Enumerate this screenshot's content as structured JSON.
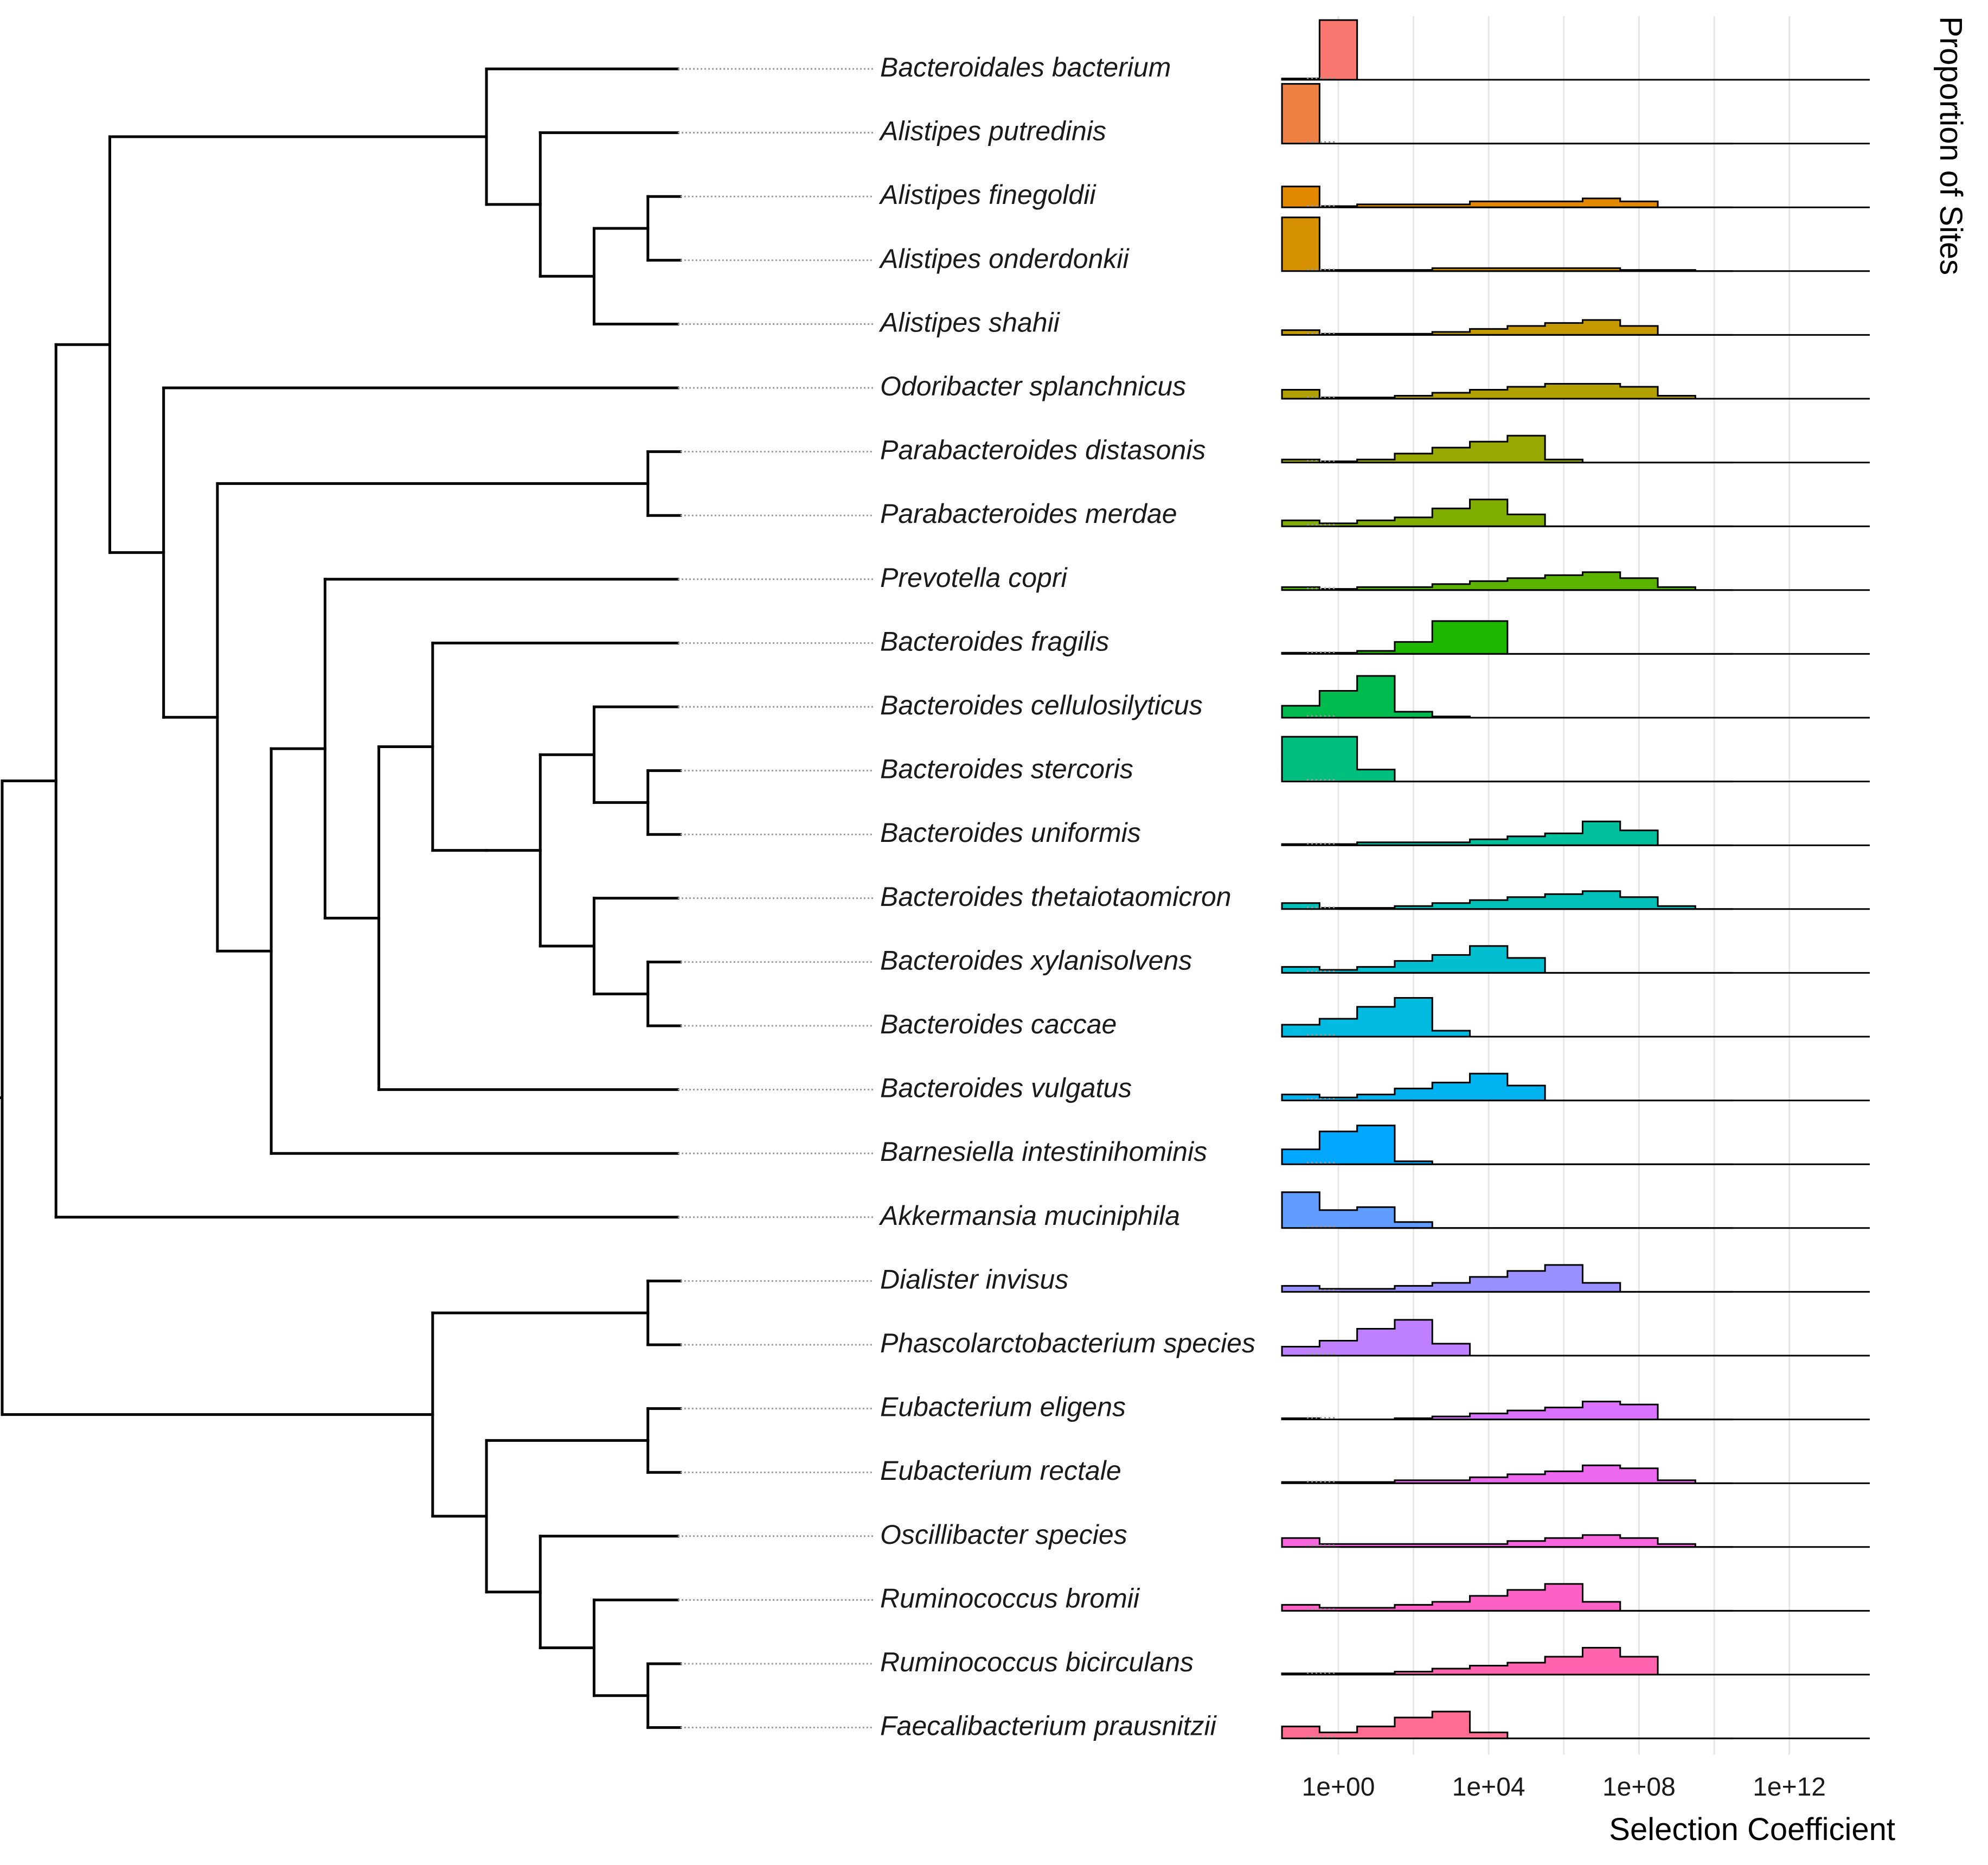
{
  "chart_data": {
    "type": "ridgeline histogram with phylogenetic tree",
    "xlabel": "Selection Coefficient",
    "ylabel": "Proportion of Sites",
    "x_scale": "log10",
    "x_ticks": [
      {
        "label": "1e+00",
        "value": 1
      },
      {
        "label": "1e+04",
        "value": 10000
      },
      {
        "label": "1e+08",
        "value": 100000000
      },
      {
        "label": "1e+12",
        "value": 1000000000000
      }
    ],
    "bin_edges_log10": [
      -1.5,
      -0.5,
      0.5,
      1.5,
      2.5,
      3.5,
      4.5,
      5.5,
      6.5,
      7.5,
      8.5,
      9.5,
      10.5
    ],
    "x_range_log10": [
      -2.5,
      11.5
    ],
    "series": [
      {
        "name": "Bacteroidales bacterium",
        "color": "#F8766D",
        "values": [
          0.02,
          1.0,
          0,
          0,
          0,
          0,
          0,
          0,
          0,
          0,
          0,
          0
        ]
      },
      {
        "name": "Alistipes putredinis",
        "color": "#EE8044",
        "values": [
          1.0,
          0,
          0,
          0,
          0,
          0,
          0,
          0,
          0,
          0,
          0,
          0
        ]
      },
      {
        "name": "Alistipes finegoldii",
        "color": "#E38900",
        "values": [
          0.35,
          0.02,
          0.05,
          0.05,
          0.05,
          0.1,
          0.1,
          0.1,
          0.15,
          0.1,
          0,
          0
        ]
      },
      {
        "name": "Alistipes onderdonkii",
        "color": "#D59100",
        "values": [
          0.9,
          0.02,
          0.02,
          0.02,
          0.05,
          0.05,
          0.05,
          0.05,
          0.05,
          0.02,
          0.02,
          0
        ]
      },
      {
        "name": "Alistipes shahii",
        "color": "#C49A00",
        "values": [
          0.08,
          0.02,
          0.02,
          0.02,
          0.05,
          0.1,
          0.15,
          0.2,
          0.25,
          0.15,
          0,
          0
        ]
      },
      {
        "name": "Odoribacter splanchnicus",
        "color": "#B0A100",
        "values": [
          0.15,
          0.02,
          0.02,
          0.05,
          0.1,
          0.15,
          0.2,
          0.25,
          0.25,
          0.2,
          0.05,
          0
        ]
      },
      {
        "name": "Parabacteroides distasonis",
        "color": "#99A800",
        "values": [
          0.05,
          0.02,
          0.05,
          0.15,
          0.25,
          0.35,
          0.45,
          0.05,
          0,
          0,
          0,
          0
        ]
      },
      {
        "name": "Parabacteroides merdae",
        "color": "#7FAE00",
        "values": [
          0.1,
          0.05,
          0.1,
          0.15,
          0.3,
          0.45,
          0.2,
          0,
          0,
          0,
          0,
          0
        ]
      },
      {
        "name": "Prevotella copri",
        "color": "#5BB300",
        "values": [
          0.05,
          0.02,
          0.05,
          0.05,
          0.1,
          0.15,
          0.2,
          0.25,
          0.3,
          0.2,
          0.05,
          0
        ]
      },
      {
        "name": "Bacteroides fragilis",
        "color": "#1EB800",
        "values": [
          0.02,
          0.02,
          0.05,
          0.2,
          0.55,
          0.55,
          0,
          0,
          0,
          0,
          0,
          0
        ]
      },
      {
        "name": "Bacteroides cellulosilyticus",
        "color": "#00BB4E",
        "values": [
          0.2,
          0.45,
          0.7,
          0.1,
          0.02,
          0,
          0,
          0,
          0,
          0,
          0,
          0
        ]
      },
      {
        "name": "Bacteroides stercoris",
        "color": "#00BE7D",
        "values": [
          0.75,
          0.75,
          0.2,
          0,
          0,
          0,
          0,
          0,
          0,
          0,
          0,
          0
        ]
      },
      {
        "name": "Bacteroides uniformis",
        "color": "#00BF9D",
        "values": [
          0.02,
          0.02,
          0.05,
          0.05,
          0.05,
          0.1,
          0.15,
          0.2,
          0.4,
          0.25,
          0,
          0
        ]
      },
      {
        "name": "Bacteroides thetaiotaomicron",
        "color": "#00C0B7",
        "values": [
          0.1,
          0.02,
          0.02,
          0.05,
          0.1,
          0.15,
          0.2,
          0.25,
          0.3,
          0.2,
          0.05,
          0
        ]
      },
      {
        "name": "Bacteroides xylanisolvens",
        "color": "#00BECD",
        "values": [
          0.1,
          0.05,
          0.1,
          0.2,
          0.3,
          0.45,
          0.25,
          0,
          0,
          0,
          0,
          0
        ]
      },
      {
        "name": "Bacteroides caccae",
        "color": "#00BAE0",
        "values": [
          0.2,
          0.3,
          0.5,
          0.65,
          0.1,
          0,
          0,
          0,
          0,
          0,
          0,
          0
        ]
      },
      {
        "name": "Bacteroides vulgatus",
        "color": "#00B3F0",
        "values": [
          0.1,
          0.05,
          0.1,
          0.2,
          0.3,
          0.45,
          0.25,
          0,
          0,
          0,
          0,
          0
        ]
      },
      {
        "name": "Barnesiella intestinihominis",
        "color": "#00A9FF",
        "values": [
          0.25,
          0.55,
          0.65,
          0.05,
          0,
          0,
          0,
          0,
          0,
          0,
          0,
          0
        ]
      },
      {
        "name": "Akkermansia muciniphila",
        "color": "#619CFF",
        "values": [
          0.6,
          0.3,
          0.35,
          0.1,
          0,
          0,
          0,
          0,
          0,
          0,
          0,
          0
        ]
      },
      {
        "name": "Dialister invisus",
        "color": "#9A8FFF",
        "values": [
          0.1,
          0.05,
          0.05,
          0.1,
          0.15,
          0.25,
          0.35,
          0.45,
          0.15,
          0,
          0,
          0
        ]
      },
      {
        "name": "Phascolarctobacterium species",
        "color": "#BE80FF",
        "values": [
          0.15,
          0.25,
          0.45,
          0.6,
          0.2,
          0,
          0,
          0,
          0,
          0,
          0,
          0
        ]
      },
      {
        "name": "Eubacterium eligens",
        "color": "#D973FF",
        "values": [
          0.02,
          0,
          0,
          0.02,
          0.05,
          0.1,
          0.15,
          0.2,
          0.3,
          0.25,
          0,
          0
        ]
      },
      {
        "name": "Eubacterium rectale",
        "color": "#EC69EF",
        "values": [
          0.02,
          0.02,
          0.02,
          0.05,
          0.05,
          0.1,
          0.15,
          0.2,
          0.3,
          0.25,
          0.05,
          0
        ]
      },
      {
        "name": "Oscillibacter species",
        "color": "#F766DD",
        "values": [
          0.15,
          0.05,
          0.05,
          0.05,
          0.05,
          0.05,
          0.1,
          0.15,
          0.2,
          0.15,
          0.05,
          0
        ]
      },
      {
        "name": "Ruminococcus bromii",
        "color": "#FD61C6",
        "values": [
          0.1,
          0.05,
          0.05,
          0.1,
          0.15,
          0.25,
          0.35,
          0.45,
          0.15,
          0,
          0,
          0
        ]
      },
      {
        "name": "Ruminococcus bicirculans",
        "color": "#FF63AD",
        "values": [
          0.02,
          0.02,
          0.02,
          0.05,
          0.1,
          0.15,
          0.2,
          0.3,
          0.45,
          0.3,
          0,
          0
        ]
      },
      {
        "name": "Faecalibacterium prausnitzii",
        "color": "#FF6C92",
        "values": [
          0.2,
          0.1,
          0.2,
          0.35,
          0.45,
          0.1,
          0,
          0,
          0,
          0,
          0,
          0
        ]
      }
    ],
    "tree": {
      "children": [
        {
          "children": [
            {
              "children": [
                {
                  "children": [
                    {
                      "taxon": 0
                    },
                    {
                      "children": [
                        {
                          "taxon": 1
                        },
                        {
                          "children": [
                            {
                              "children": [
                                {
                                  "taxon": 2
                                },
                                {
                                  "taxon": 3
                                }
                              ]
                            },
                            {
                              "taxon": 4
                            }
                          ]
                        }
                      ]
                    }
                  ]
                },
                {
                  "children": [
                    {
                      "taxon": 5
                    },
                    {
                      "children": [
                        {
                          "children": [
                            {
                              "taxon": 6
                            },
                            {
                              "taxon": 7
                            }
                          ]
                        },
                        {
                          "children": [
                            {
                              "children": [
                                {
                                  "taxon": 8
                                },
                                {
                                  "children": [
                                    {
                                      "children": [
                                        {
                                          "taxon": 9
                                        },
                                        {
                                          "children": [
                                            {
                                              "children": [
                                                {
                                                  "children": [
                                                    {
                                                      "taxon": 10
                                                    },
                                                    {
                                                      "children": [
                                                        {
                                                          "taxon": 11
                                                        },
                                                        {
                                                          "taxon": 12
                                                        }
                                                      ]
                                                    }
                                                  ]
                                                },
                                                {
                                                  "children": [
                                                    {
                                                      "taxon": 13
                                                    },
                                                    {
                                                      "children": [
                                                        {
                                                          "taxon": 14
                                                        },
                                                        {
                                                          "taxon": 15
                                                        }
                                                      ]
                                                    }
                                                  ]
                                                }
                                              ]
                                            }
                                          ]
                                        }
                                      ]
                                    },
                                    {
                                      "taxon": 16
                                    }
                                  ]
                                }
                              ]
                            },
                            {
                              "taxon": 17
                            }
                          ]
                        }
                      ]
                    }
                  ]
                }
              ]
            },
            {
              "taxon": 18
            }
          ]
        },
        {
          "children": [
            {
              "children": [
                {
                  "taxon": 19
                },
                {
                  "taxon": 20
                }
              ]
            },
            {
              "children": [
                {
                  "children": [
                    {
                      "taxon": 21
                    },
                    {
                      "taxon": 22
                    }
                  ]
                },
                {
                  "children": [
                    {
                      "taxon": 23
                    },
                    {
                      "children": [
                        {
                          "taxon": 24
                        },
                        {
                          "children": [
                            {
                              "taxon": 25
                            },
                            {
                              "taxon": 26
                            }
                          ]
                        }
                      ]
                    }
                  ]
                }
              ]
            }
          ]
        }
      ]
    }
  }
}
